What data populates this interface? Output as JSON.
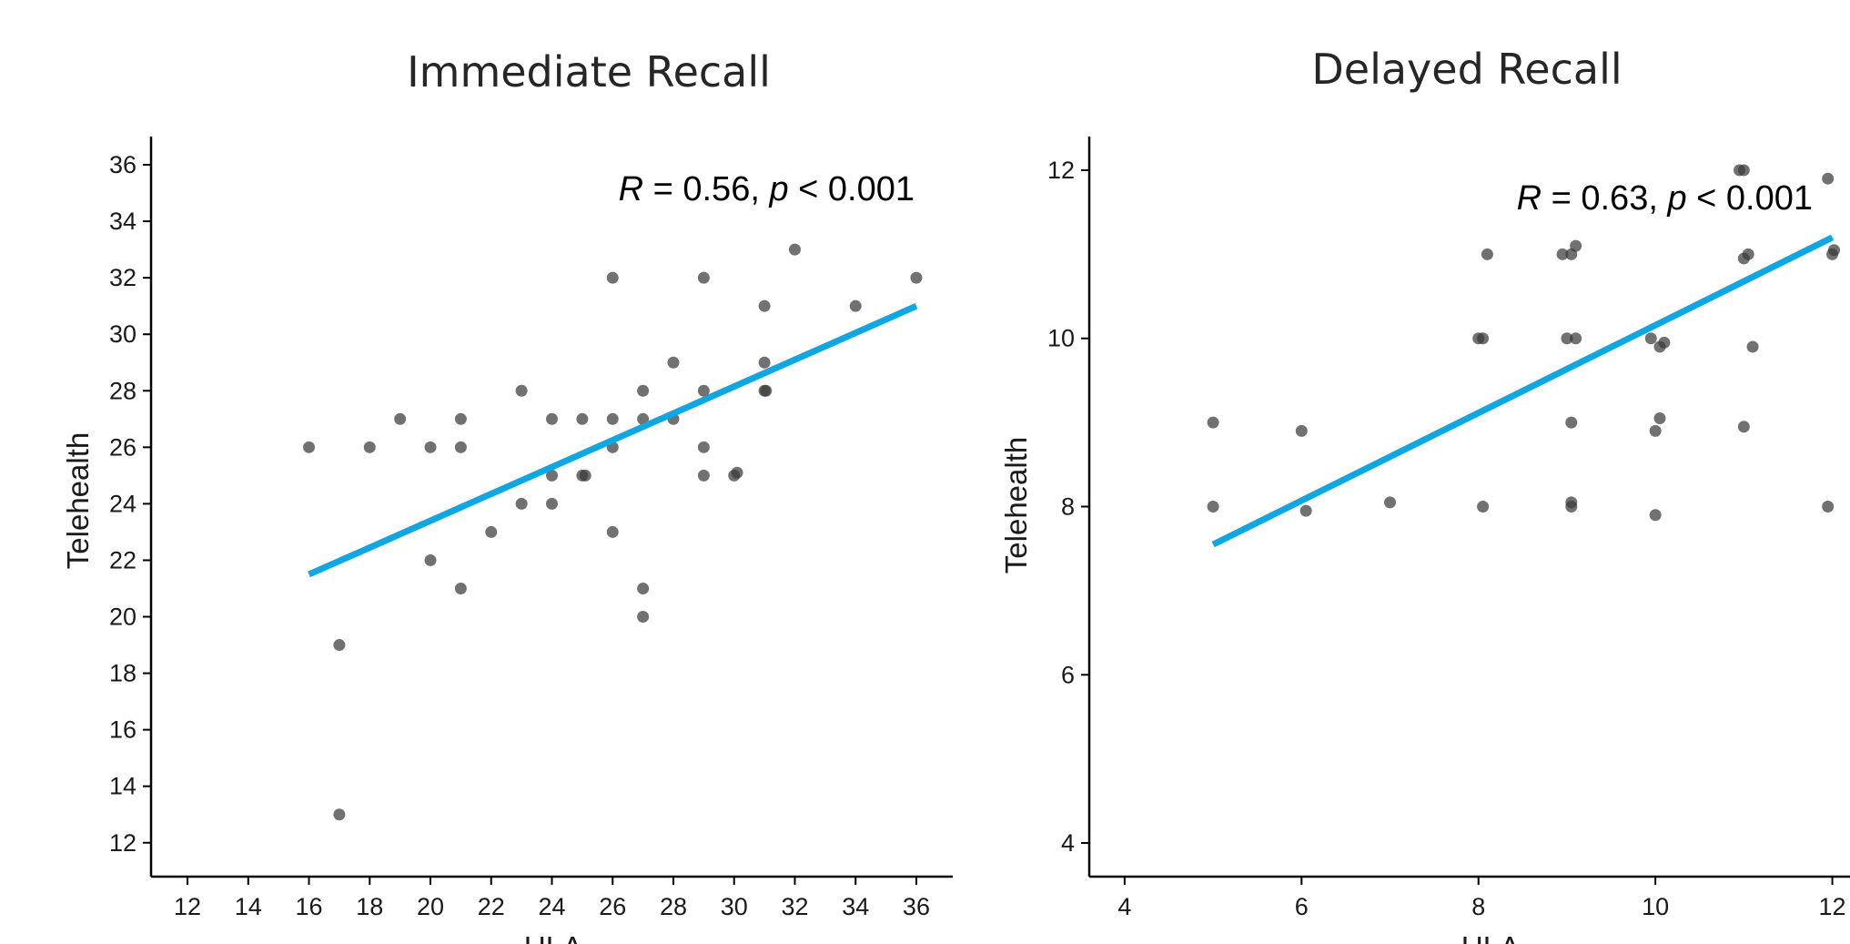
{
  "colors": {
    "point": "#3a3a3a",
    "fit_line": "#0ea7e2",
    "axis": "#000000"
  },
  "chart_data": [
    {
      "type": "scatter",
      "title": "Immediate Recall",
      "xlabel": "ULA",
      "ylabel": "Telehealth",
      "xlim": [
        10.8,
        37.2
      ],
      "ylim": [
        10.8,
        37.0
      ],
      "xticks": [
        "12",
        "14",
        "16",
        "18",
        "20",
        "22",
        "24",
        "26",
        "28",
        "30",
        "32",
        "34",
        "36"
      ],
      "yticks": [
        "12",
        "14",
        "16",
        "18",
        "20",
        "22",
        "24",
        "26",
        "28",
        "30",
        "32",
        "34",
        "36"
      ],
      "annotation": {
        "r_label": "R",
        "r_value": " = 0.56, ",
        "p_label": "p",
        "p_value": " < 0.001"
      },
      "fit_line": {
        "x": [
          16,
          36
        ],
        "y": [
          21.5,
          31.0
        ]
      },
      "points": [
        {
          "x": 16,
          "y": 26
        },
        {
          "x": 17,
          "y": 19
        },
        {
          "x": 17,
          "y": 13
        },
        {
          "x": 18,
          "y": 26
        },
        {
          "x": 19,
          "y": 27
        },
        {
          "x": 20,
          "y": 26
        },
        {
          "x": 20,
          "y": 22
        },
        {
          "x": 21,
          "y": 26
        },
        {
          "x": 21,
          "y": 27
        },
        {
          "x": 21,
          "y": 21
        },
        {
          "x": 22,
          "y": 23
        },
        {
          "x": 23,
          "y": 28
        },
        {
          "x": 23,
          "y": 24
        },
        {
          "x": 24,
          "y": 27
        },
        {
          "x": 24,
          "y": 25
        },
        {
          "x": 24,
          "y": 24
        },
        {
          "x": 25,
          "y": 27
        },
        {
          "x": 25,
          "y": 25
        },
        {
          "x": 25.1,
          "y": 25
        },
        {
          "x": 26,
          "y": 32
        },
        {
          "x": 26,
          "y": 27
        },
        {
          "x": 26,
          "y": 26
        },
        {
          "x": 26,
          "y": 23
        },
        {
          "x": 27,
          "y": 28
        },
        {
          "x": 27,
          "y": 27
        },
        {
          "x": 27,
          "y": 21
        },
        {
          "x": 27,
          "y": 20
        },
        {
          "x": 28,
          "y": 29
        },
        {
          "x": 28,
          "y": 27
        },
        {
          "x": 29,
          "y": 32
        },
        {
          "x": 29,
          "y": 28
        },
        {
          "x": 29,
          "y": 26
        },
        {
          "x": 29,
          "y": 25
        },
        {
          "x": 30,
          "y": 25
        },
        {
          "x": 30.1,
          "y": 25.1
        },
        {
          "x": 31,
          "y": 31
        },
        {
          "x": 31,
          "y": 29
        },
        {
          "x": 31,
          "y": 28
        },
        {
          "x": 31.05,
          "y": 28
        },
        {
          "x": 32,
          "y": 33
        },
        {
          "x": 34,
          "y": 31
        },
        {
          "x": 36,
          "y": 32
        }
      ]
    },
    {
      "type": "scatter",
      "title": "Delayed Recall",
      "xlabel": "ULA",
      "ylabel": "Telehealth",
      "xlim": [
        3.6,
        12.2
      ],
      "ylim": [
        3.6,
        12.4
      ],
      "xticks": [
        "4",
        "6",
        "8",
        "10",
        "12"
      ],
      "yticks": [
        "4",
        "6",
        "8",
        "10",
        "12"
      ],
      "annotation": {
        "r_label": "R",
        "r_value": " = 0.63, ",
        "p_label": "p",
        "p_value": " < 0.001"
      },
      "fit_line": {
        "x": [
          5,
          12
        ],
        "y": [
          7.55,
          11.2
        ]
      },
      "points": [
        {
          "x": 5,
          "y": 9
        },
        {
          "x": 5,
          "y": 8
        },
        {
          "x": 6,
          "y": 8.9
        },
        {
          "x": 6.05,
          "y": 7.95
        },
        {
          "x": 7,
          "y": 8.05
        },
        {
          "x": 8,
          "y": 10
        },
        {
          "x": 8.05,
          "y": 10
        },
        {
          "x": 8.05,
          "y": 8
        },
        {
          "x": 8.1,
          "y": 11
        },
        {
          "x": 8.95,
          "y": 11
        },
        {
          "x": 9,
          "y": 10
        },
        {
          "x": 9.05,
          "y": 11
        },
        {
          "x": 9.1,
          "y": 10
        },
        {
          "x": 9.05,
          "y": 9
        },
        {
          "x": 9.05,
          "y": 8.05
        },
        {
          "x": 9.05,
          "y": 8
        },
        {
          "x": 9.1,
          "y": 11.1
        },
        {
          "x": 9.95,
          "y": 10
        },
        {
          "x": 10,
          "y": 7.9
        },
        {
          "x": 10,
          "y": 8.9
        },
        {
          "x": 10.05,
          "y": 9.05
        },
        {
          "x": 10.05,
          "y": 9.9
        },
        {
          "x": 10.1,
          "y": 9.95
        },
        {
          "x": 10.95,
          "y": 12
        },
        {
          "x": 11,
          "y": 12
        },
        {
          "x": 11,
          "y": 10.95
        },
        {
          "x": 11,
          "y": 8.95
        },
        {
          "x": 11.05,
          "y": 11
        },
        {
          "x": 11.1,
          "y": 9.9
        },
        {
          "x": 11.95,
          "y": 11.9
        },
        {
          "x": 11.95,
          "y": 8
        },
        {
          "x": 12,
          "y": 11
        },
        {
          "x": 12.02,
          "y": 11.05
        }
      ]
    }
  ]
}
